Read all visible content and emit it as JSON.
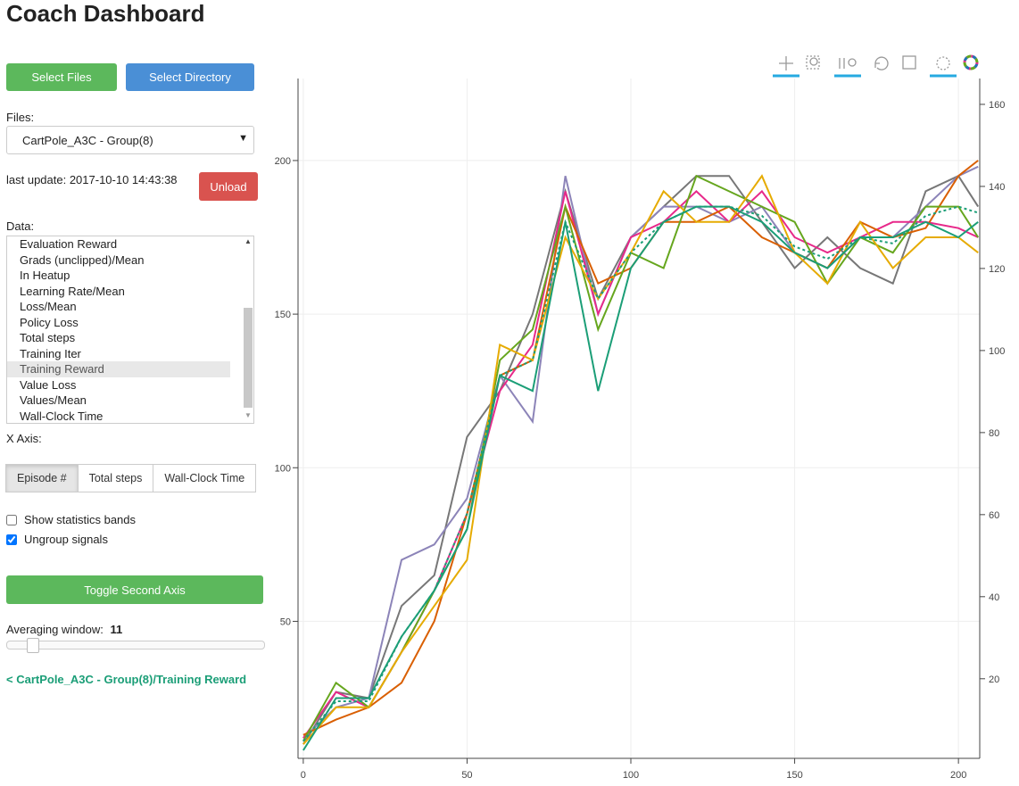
{
  "header": {
    "title": "Coach Dashboard"
  },
  "sidebar": {
    "select_files": "Select Files",
    "select_directory": "Select Directory",
    "files_label": "Files:",
    "files_selected": "CartPole_A3C - Group(8)",
    "last_update": "last update: 2017-10-10 14:43:38",
    "unload": "Unload",
    "data_label": "Data:",
    "data_items": [
      {
        "label": "Evaluation Reward",
        "selected": false
      },
      {
        "label": "Grads (unclipped)/Mean",
        "selected": false
      },
      {
        "label": "In Heatup",
        "selected": false
      },
      {
        "label": "Learning Rate/Mean",
        "selected": false
      },
      {
        "label": "Loss/Mean",
        "selected": false
      },
      {
        "label": "Policy Loss",
        "selected": false
      },
      {
        "label": "Total steps",
        "selected": false
      },
      {
        "label": "Training Iter",
        "selected": false
      },
      {
        "label": "Training Reward",
        "selected": true
      },
      {
        "label": "Value Loss",
        "selected": false
      },
      {
        "label": "Values/Mean",
        "selected": false
      },
      {
        "label": "Wall-Clock Time",
        "selected": false
      }
    ],
    "x_axis_label": "X Axis:",
    "x_axis_options": [
      {
        "label": "Episode #",
        "active": true
      },
      {
        "label": "Total steps",
        "active": false
      },
      {
        "label": "Wall-Clock Time",
        "active": false
      }
    ],
    "checkboxes": [
      {
        "label": "Show statistics bands",
        "checked": false
      },
      {
        "label": "Ungroup signals",
        "checked": true
      }
    ],
    "toggle_second_axis": "Toggle Second Axis",
    "averaging_label": "Averaging window:",
    "averaging_value": 11,
    "signal_link": "< CartPole_A3C - Group(8)/Training Reward"
  },
  "chart_data": {
    "type": "line",
    "x": [
      0,
      10,
      20,
      30,
      40,
      50,
      60,
      70,
      80,
      90,
      100,
      110,
      120,
      130,
      140,
      150,
      160,
      170,
      180,
      190,
      200,
      206
    ],
    "xlim": [
      -1.6,
      206.5
    ],
    "xticks": [
      0,
      50,
      100,
      150,
      200
    ],
    "ylim": [
      5.4,
      226.7
    ],
    "yticks": [
      50,
      100,
      150,
      200
    ],
    "y2lim": [
      0.6,
      166.3
    ],
    "y2ticks": [
      20,
      40,
      60,
      80,
      100,
      120,
      140,
      160
    ],
    "grid": true,
    "series": [
      {
        "color": "#777777",
        "values": [
          10,
          27,
          25,
          55,
          65,
          110,
          125,
          150,
          190,
          155,
          175,
          185,
          195,
          195,
          180,
          165,
          175,
          165,
          160,
          190,
          195,
          185
        ]
      },
      {
        "color": "#8c84b8",
        "values": [
          12,
          22,
          25,
          70,
          75,
          90,
          130,
          115,
          195,
          150,
          175,
          185,
          185,
          180,
          185,
          170,
          165,
          175,
          175,
          185,
          195,
          198
        ]
      },
      {
        "color": "#e7298a",
        "values": [
          12,
          27,
          22,
          40,
          60,
          85,
          125,
          140,
          190,
          150,
          175,
          180,
          190,
          180,
          190,
          175,
          170,
          175,
          180,
          180,
          178,
          175
        ]
      },
      {
        "color": "#d95f02",
        "values": [
          13,
          18,
          22,
          30,
          50,
          85,
          130,
          135,
          185,
          160,
          165,
          180,
          180,
          185,
          175,
          170,
          165,
          180,
          175,
          178,
          195,
          200
        ]
      },
      {
        "color": "#66a61e",
        "values": [
          11,
          30,
          22,
          40,
          60,
          80,
          135,
          145,
          185,
          145,
          170,
          165,
          195,
          190,
          185,
          180,
          160,
          175,
          170,
          185,
          185,
          175
        ]
      },
      {
        "color": "#e6ab02",
        "values": [
          10,
          22,
          22,
          40,
          55,
          70,
          140,
          135,
          175,
          155,
          170,
          190,
          180,
          180,
          195,
          170,
          160,
          180,
          165,
          175,
          175,
          170
        ]
      },
      {
        "color": "#1b9e77",
        "values": [
          8,
          25,
          25,
          45,
          60,
          80,
          130,
          125,
          180,
          125,
          165,
          180,
          185,
          185,
          180,
          170,
          165,
          175,
          175,
          180,
          175,
          180
        ]
      },
      {
        "color": "#1b9e77",
        "dash": "dotted",
        "values": [
          11,
          24,
          24,
          45,
          60,
          85,
          130,
          135,
          180,
          155,
          170,
          180,
          185,
          185,
          182,
          172,
          168,
          175,
          173,
          182,
          185,
          183
        ]
      }
    ]
  }
}
